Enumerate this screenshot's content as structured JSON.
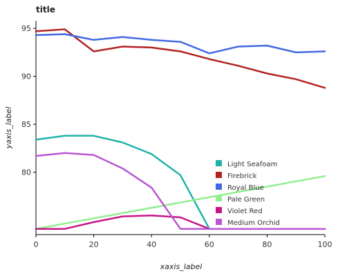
{
  "chart_data": {
    "type": "line",
    "title": "title",
    "xlabel": "xaxis_label",
    "ylabel": "yaxis_label",
    "xlim": [
      0,
      100
    ],
    "ylim": [
      73.5,
      95.8
    ],
    "xticks": [
      0,
      20,
      40,
      60,
      80,
      100
    ],
    "yticks": [
      80,
      85,
      90,
      95
    ],
    "grid": false,
    "legend_position": "right",
    "series": [
      {
        "name": "Light Seafoam",
        "color": "#20B2AA",
        "x": [
          0,
          10,
          20,
          30,
          40,
          50,
          60,
          70,
          80,
          90,
          100
        ],
        "y": [
          83.4,
          83.8,
          83.8,
          83.1,
          81.9,
          79.7,
          74.1,
          74.1,
          74.1,
          74.1,
          74.1
        ]
      },
      {
        "name": "Firebrick",
        "color": "#B22222",
        "x": [
          0,
          10,
          20,
          30,
          40,
          50,
          60,
          70,
          80,
          90,
          100
        ],
        "y": [
          94.7,
          94.9,
          92.6,
          93.1,
          93.0,
          92.6,
          91.8,
          91.1,
          90.3,
          89.7,
          88.8
        ]
      },
      {
        "name": "Royal Blue",
        "color": "#4169E1",
        "x": [
          0,
          10,
          20,
          30,
          40,
          50,
          60,
          70,
          80,
          90,
          100
        ],
        "y": [
          94.3,
          94.4,
          93.8,
          94.1,
          93.8,
          93.6,
          92.4,
          93.1,
          93.2,
          92.5,
          92.6
        ]
      },
      {
        "name": "Pale Green",
        "color": "#90EE90",
        "x": [
          0,
          100
        ],
        "y": [
          74.1,
          79.6
        ]
      },
      {
        "name": "Violet Red",
        "color": "#C71585",
        "x": [
          0,
          10,
          20,
          30,
          40,
          50,
          60,
          70,
          80,
          90,
          100
        ],
        "y": [
          74.1,
          74.1,
          74.8,
          75.4,
          75.5,
          75.3,
          74.1,
          74.1,
          74.1,
          74.1,
          74.1
        ]
      },
      {
        "name": "Medium Orchid",
        "color": "#BA55D3",
        "x": [
          0,
          10,
          20,
          30,
          40,
          50,
          60,
          70,
          80,
          90,
          100
        ],
        "y": [
          81.7,
          82.0,
          81.8,
          80.4,
          78.4,
          74.1,
          74.1,
          74.1,
          74.1,
          74.1,
          74.1
        ]
      }
    ]
  }
}
